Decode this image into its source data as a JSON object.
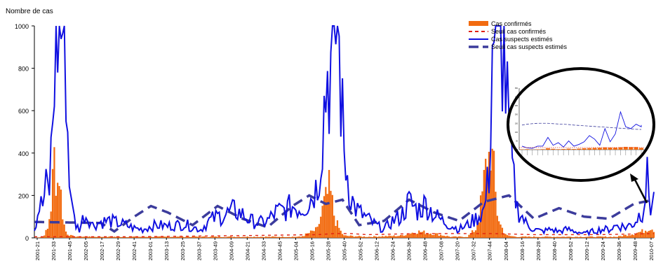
{
  "chart_data": {
    "type": "bar+line",
    "ylabel": "Nombre de cas",
    "ylim": [
      0,
      1000
    ],
    "yticks": [
      0,
      200,
      400,
      600,
      800,
      1000
    ],
    "x_tick_labels": [
      "2001-21",
      "2001-33",
      "2001-45",
      "2002-05",
      "2002-17",
      "2002-29",
      "2002-41",
      "2003-01",
      "2003-13",
      "2003-25",
      "2003-37",
      "2003-49",
      "2004-09",
      "2004-21",
      "2004-33",
      "2004-45",
      "2005-04",
      "2005-16",
      "2005-28",
      "2005-40",
      "2005-52",
      "2006-12",
      "2006-24",
      "2006-36",
      "2006-48",
      "2007-08",
      "2007-20",
      "2007-32",
      "2007-44",
      "2008-04",
      "2008-16",
      "2008-28",
      "2008-40",
      "2008-52",
      "2009-12",
      "2009-24",
      "2009-36",
      "2009-48",
      "2010-07"
    ],
    "legend": {
      "position": "top-right",
      "entries": [
        {
          "label": "Cas confirmés",
          "color": "#F26B10",
          "style": "bar"
        },
        {
          "label": "Seuil cas confirmés",
          "color": "#E02010",
          "style": "dashed"
        },
        {
          "label": "Cas suspects estimés",
          "color": "#1010E0",
          "style": "line"
        },
        {
          "label": "Seuil cas suspects estimés",
          "color": "#3C3C9C",
          "style": "longdash"
        }
      ]
    },
    "series": [
      {
        "name": "Cas suspects estimés",
        "anchors": [
          [
            0,
            40
          ],
          [
            3,
            150
          ],
          [
            5,
            155
          ],
          [
            7,
            240
          ],
          [
            9,
            230
          ],
          [
            10,
            390
          ],
          [
            11,
            560
          ],
          [
            12,
            800
          ],
          [
            13,
            1000
          ],
          [
            18,
            1000
          ],
          [
            19,
            850
          ],
          [
            20,
            500
          ],
          [
            21,
            260
          ],
          [
            22,
            260
          ],
          [
            23,
            120
          ],
          [
            25,
            60
          ],
          [
            27,
            40
          ],
          [
            30,
            110
          ],
          [
            33,
            90
          ],
          [
            35,
            60
          ],
          [
            40,
            75
          ],
          [
            45,
            80
          ],
          [
            50,
            70
          ],
          [
            55,
            60
          ],
          [
            60,
            45
          ],
          [
            65,
            40
          ],
          [
            70,
            55
          ],
          [
            75,
            60
          ],
          [
            80,
            55
          ],
          [
            85,
            60
          ],
          [
            90,
            65
          ],
          [
            95,
            50
          ],
          [
            100,
            40
          ],
          [
            105,
            80
          ],
          [
            110,
            100
          ],
          [
            115,
            110
          ],
          [
            120,
            130
          ],
          [
            125,
            110
          ],
          [
            130,
            80
          ],
          [
            135,
            70
          ],
          [
            140,
            80
          ],
          [
            145,
            120
          ],
          [
            150,
            130
          ],
          [
            155,
            150
          ],
          [
            160,
            140
          ],
          [
            165,
            170
          ],
          [
            170,
            250
          ],
          [
            172,
            400
          ],
          [
            174,
            620
          ],
          [
            176,
            780
          ],
          [
            178,
            800
          ],
          [
            180,
            1000
          ],
          [
            182,
            1000
          ],
          [
            184,
            700
          ],
          [
            186,
            400
          ],
          [
            188,
            300
          ],
          [
            190,
            200
          ],
          [
            192,
            150
          ],
          [
            195,
            120
          ],
          [
            200,
            90
          ],
          [
            205,
            60
          ],
          [
            210,
            40
          ],
          [
            215,
            80
          ],
          [
            220,
            100
          ],
          [
            225,
            170
          ],
          [
            230,
            130
          ],
          [
            235,
            160
          ],
          [
            240,
            110
          ],
          [
            245,
            80
          ],
          [
            250,
            60
          ],
          [
            255,
            40
          ],
          [
            260,
            60
          ],
          [
            265,
            90
          ],
          [
            270,
            130
          ],
          [
            273,
            300
          ],
          [
            275,
            900
          ],
          [
            276,
            1000
          ],
          [
            280,
            1000
          ],
          [
            282,
            870
          ],
          [
            284,
            600
          ],
          [
            286,
            400
          ],
          [
            288,
            250
          ],
          [
            290,
            140
          ],
          [
            295,
            70
          ],
          [
            300,
            40
          ],
          [
            305,
            30
          ],
          [
            310,
            40
          ],
          [
            315,
            30
          ],
          [
            320,
            40
          ],
          [
            325,
            30
          ],
          [
            330,
            20
          ],
          [
            335,
            30
          ],
          [
            340,
            40
          ],
          [
            345,
            40
          ],
          [
            350,
            60
          ],
          [
            355,
            50
          ],
          [
            360,
            70
          ],
          [
            365,
            130
          ],
          [
            368,
            270
          ],
          [
            370,
            150
          ],
          [
            372,
            180
          ]
        ]
      },
      {
        "name": "Seuil cas suspects estimés",
        "period": 52,
        "anchors": [
          [
            0,
            75
          ],
          [
            40,
            70
          ],
          [
            48,
            30
          ],
          [
            60,
            100
          ],
          [
            70,
            150
          ],
          [
            80,
            120
          ],
          [
            95,
            60
          ],
          [
            110,
            150
          ],
          [
            125,
            90
          ],
          [
            140,
            50
          ],
          [
            155,
            150
          ],
          [
            165,
            200
          ],
          [
            175,
            160
          ],
          [
            185,
            180
          ],
          [
            195,
            60
          ],
          [
            210,
            80
          ],
          [
            225,
            180
          ],
          [
            240,
            120
          ],
          [
            255,
            80
          ],
          [
            270,
            170
          ],
          [
            285,
            200
          ],
          [
            300,
            90
          ],
          [
            315,
            140
          ],
          [
            330,
            100
          ],
          [
            345,
            90
          ],
          [
            360,
            160
          ],
          [
            372,
            180
          ]
        ]
      },
      {
        "name": "Cas confirmés",
        "anchors": [
          [
            0,
            0
          ],
          [
            5,
            5
          ],
          [
            8,
            40
          ],
          [
            10,
            150
          ],
          [
            12,
            380
          ],
          [
            13,
            300
          ],
          [
            14,
            260
          ],
          [
            15,
            310
          ],
          [
            16,
            200
          ],
          [
            17,
            120
          ],
          [
            18,
            60
          ],
          [
            19,
            30
          ],
          [
            20,
            20
          ],
          [
            22,
            10
          ],
          [
            25,
            5
          ],
          [
            60,
            5
          ],
          [
            100,
            5
          ],
          [
            160,
            5
          ],
          [
            170,
            40
          ],
          [
            172,
            100
          ],
          [
            174,
            160
          ],
          [
            176,
            200
          ],
          [
            177,
            230
          ],
          [
            178,
            200
          ],
          [
            179,
            160
          ],
          [
            180,
            110
          ],
          [
            182,
            60
          ],
          [
            184,
            30
          ],
          [
            186,
            10
          ],
          [
            200,
            5
          ],
          [
            220,
            10
          ],
          [
            230,
            30
          ],
          [
            240,
            20
          ],
          [
            250,
            5
          ],
          [
            260,
            5
          ],
          [
            265,
            40
          ],
          [
            267,
            100
          ],
          [
            269,
            200
          ],
          [
            271,
            320
          ],
          [
            273,
            380
          ],
          [
            274,
            450
          ],
          [
            275,
            360
          ],
          [
            276,
            300
          ],
          [
            277,
            200
          ],
          [
            278,
            120
          ],
          [
            280,
            60
          ],
          [
            282,
            30
          ],
          [
            284,
            10
          ],
          [
            290,
            5
          ],
          [
            350,
            5
          ],
          [
            360,
            20
          ],
          [
            365,
            30
          ],
          [
            370,
            50
          ],
          [
            372,
            40
          ]
        ]
      },
      {
        "name": "Seuil cas confirmés",
        "anchors": [
          [
            0,
            5
          ],
          [
            60,
            5
          ],
          [
            120,
            10
          ],
          [
            170,
            15
          ],
          [
            180,
            20
          ],
          [
            190,
            20
          ],
          [
            200,
            15
          ],
          [
            230,
            20
          ],
          [
            260,
            20
          ],
          [
            275,
            20
          ],
          [
            300,
            15
          ],
          [
            340,
            15
          ],
          [
            372,
            20
          ]
        ]
      }
    ]
  },
  "inset": {
    "description_icon": "zoom-circle",
    "axis_small_labels": [
      "350",
      "300",
      "250",
      "200",
      "150",
      "100",
      "50",
      "0"
    ]
  }
}
